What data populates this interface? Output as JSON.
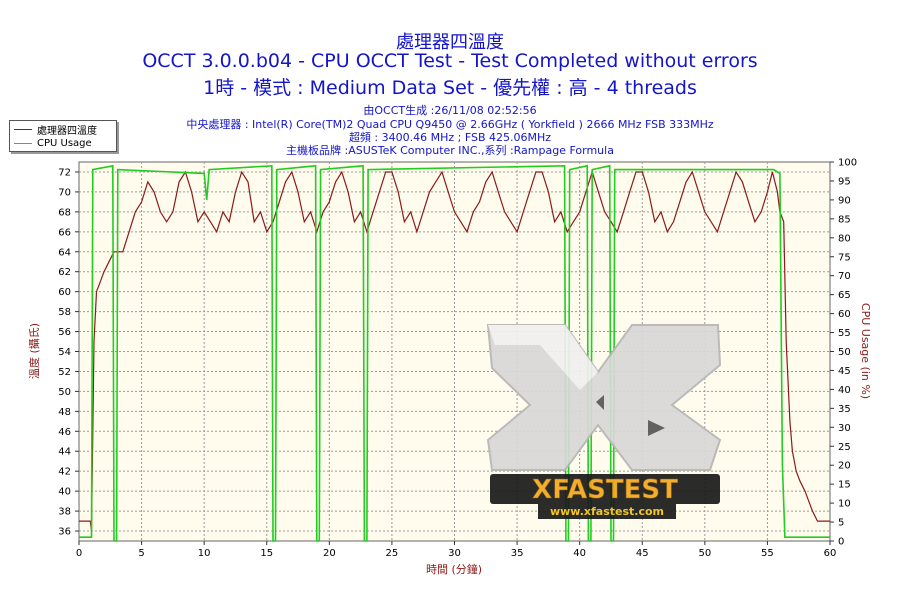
{
  "titles": {
    "line1": "處理器四溫度",
    "line2": "OCCT 3.0.0.b04 - CPU OCCT Test - Test Completed without errors",
    "line3": "1時 - 模式 : Medium Data Set - 優先權 : 高 - 4 threads"
  },
  "info": {
    "line1": "由OCCT生成 :26/11/08 02:52:56",
    "line2": "中央處理器 : Intel(R) Core(TM)2 Quad CPU Q9450 @ 2.66GHz ( Yorkfield ) 2666 MHz FSB 333MHz",
    "line3": "超頻 : 3400.46 MHz ; FSB 425.06MHz",
    "line4": "主機板品牌 :ASUSTeK Computer INC.,系列 :Rampage Formula"
  },
  "watermark": {
    "logo_text": "XFASTEST",
    "url": "www.xfastest.com"
  },
  "colors": {
    "temperature": "#8b1a1a",
    "cpu_usage": "#22cc22",
    "plot_bg": "#fffcee",
    "text_blue": "#1515c8"
  },
  "chart_data": {
    "type": "line",
    "xlabel": "時間 (分鐘)",
    "ylabel_left": "溫度 (攝氏)",
    "ylabel_right": "CPU Usage (in %)",
    "xlim": [
      0,
      60
    ],
    "ylim_left": [
      35,
      73
    ],
    "ylim_right": [
      0,
      100
    ],
    "x_ticks": [
      0,
      5,
      10,
      15,
      20,
      25,
      30,
      35,
      40,
      45,
      50,
      55,
      60
    ],
    "y_left_ticks": [
      36,
      38,
      40,
      42,
      44,
      46,
      48,
      50,
      52,
      54,
      56,
      58,
      60,
      62,
      64,
      66,
      68,
      70,
      72
    ],
    "y_right_ticks": [
      0,
      5,
      10,
      15,
      20,
      25,
      30,
      35,
      40,
      45,
      50,
      55,
      60,
      65,
      70,
      75,
      80,
      85,
      90,
      95,
      100
    ],
    "grid": true,
    "legend_position": "top-left",
    "series": [
      {
        "name": "處理器四溫度",
        "axis": "left",
        "points": [
          [
            0,
            37
          ],
          [
            0.9,
            37
          ],
          [
            1.0,
            36
          ],
          [
            1.2,
            55
          ],
          [
            1.4,
            60
          ],
          [
            1.7,
            61
          ],
          [
            2.0,
            62
          ],
          [
            2.4,
            63
          ],
          [
            2.8,
            64
          ],
          [
            3.2,
            64
          ],
          [
            3.5,
            64
          ],
          [
            4.0,
            66
          ],
          [
            4.5,
            68
          ],
          [
            5.0,
            69
          ],
          [
            5.5,
            71
          ],
          [
            6.0,
            70
          ],
          [
            6.5,
            68
          ],
          [
            7.0,
            67
          ],
          [
            7.5,
            68
          ],
          [
            8.0,
            71
          ],
          [
            8.5,
            72
          ],
          [
            9.0,
            70
          ],
          [
            9.5,
            67
          ],
          [
            10.0,
            68
          ],
          [
            10.5,
            67
          ],
          [
            11.0,
            66
          ],
          [
            11.5,
            68
          ],
          [
            12.0,
            67
          ],
          [
            12.5,
            70
          ],
          [
            13.0,
            72
          ],
          [
            13.5,
            71
          ],
          [
            14.0,
            67
          ],
          [
            14.5,
            68
          ],
          [
            15.0,
            66
          ],
          [
            15.5,
            67
          ],
          [
            16.0,
            69
          ],
          [
            16.5,
            71
          ],
          [
            17.0,
            72
          ],
          [
            17.5,
            70
          ],
          [
            18.0,
            67
          ],
          [
            18.5,
            68
          ],
          [
            19.0,
            66
          ],
          [
            19.5,
            68
          ],
          [
            20.0,
            69
          ],
          [
            20.5,
            71
          ],
          [
            21.0,
            72
          ],
          [
            21.5,
            70
          ],
          [
            22.0,
            67
          ],
          [
            22.5,
            68
          ],
          [
            23.0,
            66
          ],
          [
            23.5,
            68
          ],
          [
            24.0,
            70
          ],
          [
            24.5,
            72
          ],
          [
            25.0,
            72
          ],
          [
            25.5,
            70
          ],
          [
            26.0,
            67
          ],
          [
            26.5,
            68
          ],
          [
            27.0,
            66
          ],
          [
            27.5,
            68
          ],
          [
            28.0,
            70
          ],
          [
            28.5,
            71
          ],
          [
            29.0,
            72
          ],
          [
            29.5,
            70
          ],
          [
            30.0,
            68
          ],
          [
            30.5,
            67
          ],
          [
            31.0,
            66
          ],
          [
            31.5,
            68
          ],
          [
            32.0,
            69
          ],
          [
            32.5,
            71
          ],
          [
            33.0,
            72
          ],
          [
            33.5,
            70
          ],
          [
            34.0,
            68
          ],
          [
            34.5,
            67
          ],
          [
            35.0,
            66
          ],
          [
            35.5,
            68
          ],
          [
            36.0,
            70
          ],
          [
            36.5,
            72
          ],
          [
            37.0,
            72
          ],
          [
            37.5,
            70
          ],
          [
            38.0,
            67
          ],
          [
            38.5,
            68
          ],
          [
            39.0,
            66
          ],
          [
            39.5,
            67
          ],
          [
            40.0,
            68
          ],
          [
            40.5,
            70
          ],
          [
            41.0,
            72
          ],
          [
            41.5,
            70
          ],
          [
            42.0,
            68
          ],
          [
            42.5,
            67
          ],
          [
            43.0,
            66
          ],
          [
            43.5,
            68
          ],
          [
            44.0,
            70
          ],
          [
            44.5,
            72
          ],
          [
            45.0,
            72
          ],
          [
            45.5,
            70
          ],
          [
            46.0,
            67
          ],
          [
            46.5,
            68
          ],
          [
            47.0,
            66
          ],
          [
            47.5,
            67
          ],
          [
            48.0,
            69
          ],
          [
            48.5,
            71
          ],
          [
            49.0,
            72
          ],
          [
            49.5,
            70
          ],
          [
            50.0,
            68
          ],
          [
            50.5,
            67
          ],
          [
            51.0,
            66
          ],
          [
            51.5,
            68
          ],
          [
            52.0,
            70
          ],
          [
            52.5,
            72
          ],
          [
            53.0,
            71
          ],
          [
            53.5,
            69
          ],
          [
            54.0,
            67
          ],
          [
            54.5,
            68
          ],
          [
            55.0,
            70
          ],
          [
            55.4,
            72
          ],
          [
            55.8,
            70
          ],
          [
            56.0,
            68
          ],
          [
            56.3,
            67
          ],
          [
            56.5,
            55
          ],
          [
            56.8,
            47
          ],
          [
            57.0,
            44
          ],
          [
            57.3,
            42
          ],
          [
            57.6,
            41
          ],
          [
            58.0,
            40
          ],
          [
            58.3,
            39
          ],
          [
            58.6,
            38
          ],
          [
            59.0,
            37
          ],
          [
            60.0,
            37
          ]
        ]
      },
      {
        "name": "CPU Usage",
        "axis": "right",
        "points": [
          [
            0,
            1
          ],
          [
            1.0,
            1
          ],
          [
            1.1,
            98
          ],
          [
            2.7,
            99
          ],
          [
            2.8,
            0
          ],
          [
            3.0,
            0
          ],
          [
            3.1,
            98
          ],
          [
            10.0,
            97
          ],
          [
            10.2,
            90
          ],
          [
            10.4,
            98
          ],
          [
            15.4,
            99
          ],
          [
            15.5,
            0
          ],
          [
            15.7,
            0
          ],
          [
            15.8,
            98
          ],
          [
            18.9,
            99
          ],
          [
            19.0,
            0
          ],
          [
            19.2,
            0
          ],
          [
            19.3,
            98
          ],
          [
            22.7,
            99
          ],
          [
            22.8,
            0
          ],
          [
            23.0,
            0
          ],
          [
            23.1,
            98
          ],
          [
            38.8,
            99
          ],
          [
            38.9,
            0
          ],
          [
            39.1,
            0
          ],
          [
            39.2,
            98
          ],
          [
            40.6,
            99
          ],
          [
            40.7,
            0
          ],
          [
            40.9,
            0
          ],
          [
            41.0,
            98
          ],
          [
            42.4,
            99
          ],
          [
            42.5,
            0
          ],
          [
            42.7,
            0
          ],
          [
            42.8,
            98
          ],
          [
            55.5,
            98
          ],
          [
            56.0,
            97
          ],
          [
            56.2,
            20
          ],
          [
            56.4,
            1
          ],
          [
            60.0,
            1
          ]
        ]
      }
    ]
  }
}
